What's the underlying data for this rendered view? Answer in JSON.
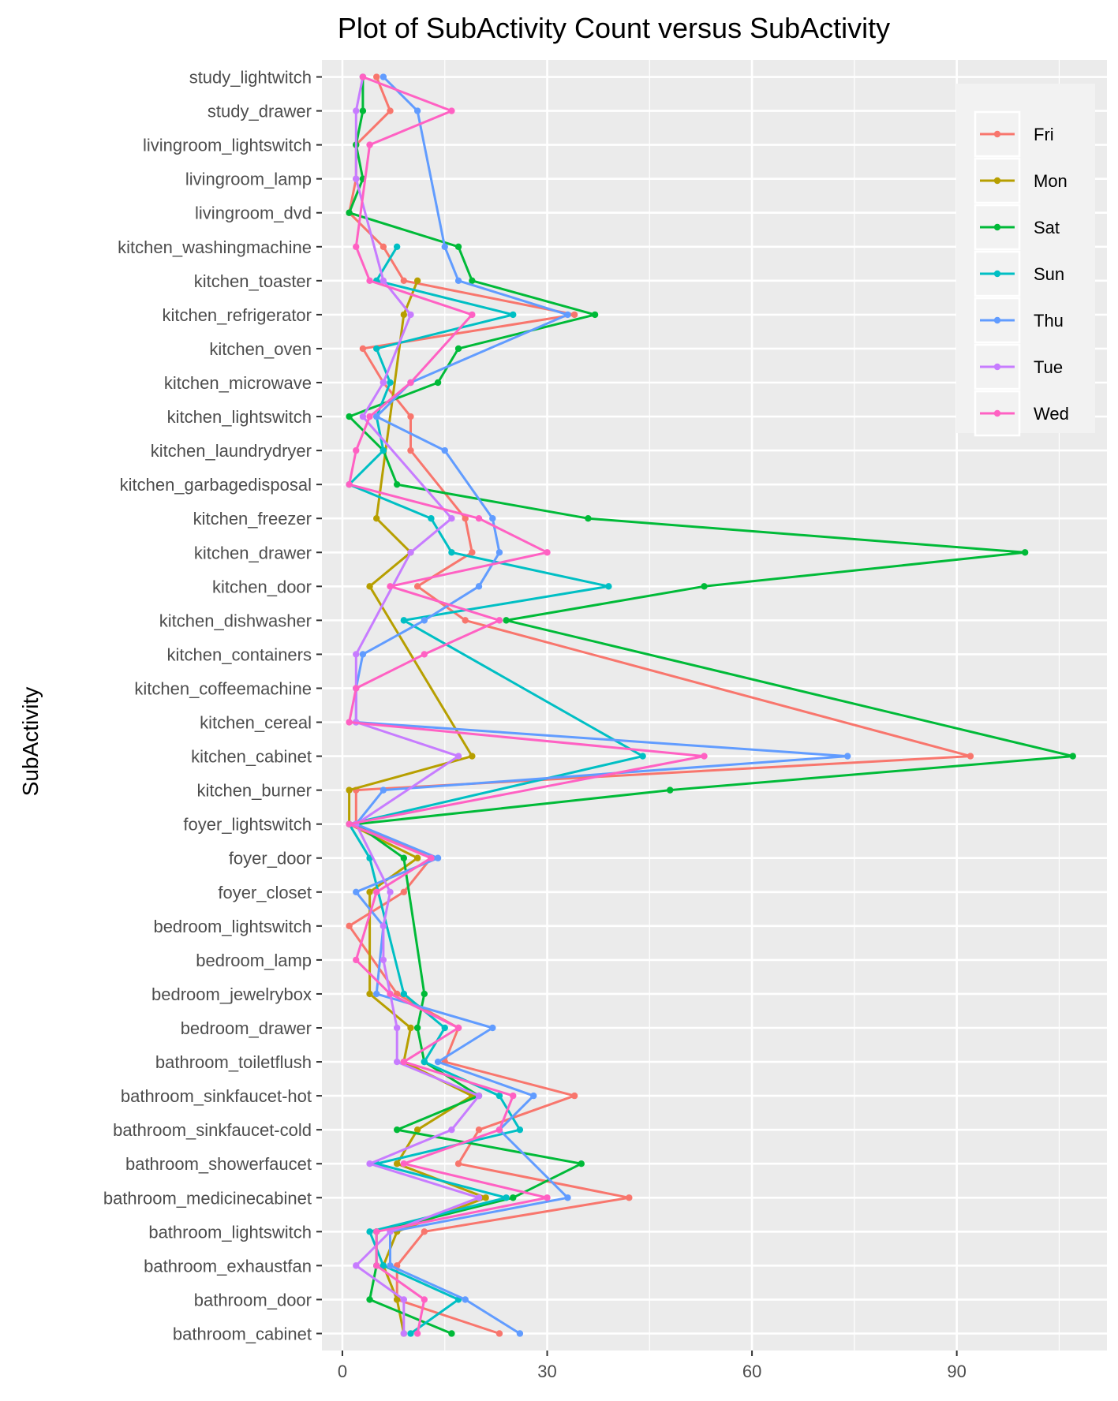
{
  "chart_data": {
    "type": "line",
    "title": "Plot of SubActivity Count versus SubActivity",
    "xlabel": "",
    "ylabel": "SubActivity",
    "xlim": [
      -3,
      112
    ],
    "x_ticks": [
      0,
      30,
      60,
      90
    ],
    "grid": true,
    "legend_position": "top-right",
    "categories": [
      "bathroom_cabinet",
      "bathroom_door",
      "bathroom_exhaustfan",
      "bathroom_lightswitch",
      "bathroom_medicinecabinet",
      "bathroom_showerfaucet",
      "bathroom_sinkfaucet-cold",
      "bathroom_sinkfaucet-hot",
      "bathroom_toiletflush",
      "bedroom_drawer",
      "bedroom_jewelrybox",
      "bedroom_lamp",
      "bedroom_lightswitch",
      "foyer_closet",
      "foyer_door",
      "foyer_lightswitch",
      "kitchen_burner",
      "kitchen_cabinet",
      "kitchen_cereal",
      "kitchen_coffeemachine",
      "kitchen_containers",
      "kitchen_dishwasher",
      "kitchen_door",
      "kitchen_drawer",
      "kitchen_freezer",
      "kitchen_garbagedisposal",
      "kitchen_laundrydryer",
      "kitchen_lightswitch",
      "kitchen_microwave",
      "kitchen_oven",
      "kitchen_refrigerator",
      "kitchen_toaster",
      "kitchen_washingmachine",
      "livingroom_dvd",
      "livingroom_lamp",
      "livingroom_lightswitch",
      "study_drawer",
      "study_lightwitch"
    ],
    "series": [
      {
        "name": "Fri",
        "color": "#F8766D",
        "values": [
          23,
          8,
          8,
          12,
          42,
          17,
          20,
          34,
          15,
          17,
          8,
          null,
          1,
          9,
          13,
          2,
          2,
          92,
          null,
          null,
          null,
          18,
          11,
          19,
          18,
          null,
          10,
          10,
          6,
          3,
          34,
          9,
          6,
          1,
          2,
          2,
          7,
          5
        ]
      },
      {
        "name": "Mon",
        "color": "#B79F00",
        "values": [
          9,
          8,
          6,
          8,
          21,
          8,
          11,
          19,
          9,
          10,
          4,
          null,
          null,
          4,
          11,
          1,
          1,
          19,
          null,
          null,
          null,
          null,
          4,
          10,
          5,
          null,
          null,
          null,
          null,
          null,
          9,
          11,
          null,
          null,
          null,
          null,
          null,
          null
        ]
      },
      {
        "name": "Sat",
        "color": "#00BA38",
        "values": [
          16,
          4,
          5,
          5,
          25,
          35,
          8,
          20,
          12,
          11,
          12,
          null,
          null,
          null,
          9,
          2,
          48,
          107,
          null,
          null,
          null,
          24,
          53,
          100,
          36,
          8,
          6,
          1,
          14,
          17,
          37,
          19,
          17,
          1,
          3,
          2,
          3,
          3
        ]
      },
      {
        "name": "Sun",
        "color": "#00BFC4",
        "values": [
          10,
          17,
          6,
          4,
          24,
          5,
          26,
          23,
          12,
          15,
          9,
          null,
          null,
          null,
          4,
          1,
          null,
          44,
          null,
          null,
          null,
          9,
          39,
          16,
          13,
          1,
          6,
          5,
          7,
          5,
          25,
          5,
          8,
          null,
          null,
          null,
          null,
          null
        ]
      },
      {
        "name": "Thu",
        "color": "#619CFF",
        "values": [
          26,
          18,
          7,
          7,
          33,
          null,
          23,
          28,
          14,
          22,
          5,
          null,
          6,
          2,
          14,
          2,
          6,
          74,
          2,
          2,
          3,
          12,
          20,
          23,
          22,
          null,
          15,
          5,
          10,
          null,
          33,
          17,
          15,
          null,
          null,
          null,
          11,
          6
        ]
      },
      {
        "name": "Tue",
        "color": "#C77CFF",
        "values": [
          9,
          9,
          2,
          7,
          20,
          4,
          16,
          20,
          8,
          8,
          null,
          6,
          6,
          7,
          null,
          2,
          null,
          17,
          2,
          null,
          2,
          null,
          null,
          10,
          16,
          null,
          null,
          3,
          6,
          null,
          10,
          6,
          null,
          null,
          2,
          null,
          2,
          3
        ]
      },
      {
        "name": "Wed",
        "color": "#FF61C3",
        "values": [
          11,
          12,
          5,
          5,
          30,
          9,
          23,
          25,
          9,
          17,
          7,
          2,
          null,
          5,
          13,
          1,
          null,
          53,
          1,
          2,
          12,
          23,
          7,
          30,
          20,
          1,
          2,
          4,
          10,
          null,
          19,
          4,
          2,
          null,
          null,
          4,
          16,
          3
        ]
      }
    ]
  }
}
